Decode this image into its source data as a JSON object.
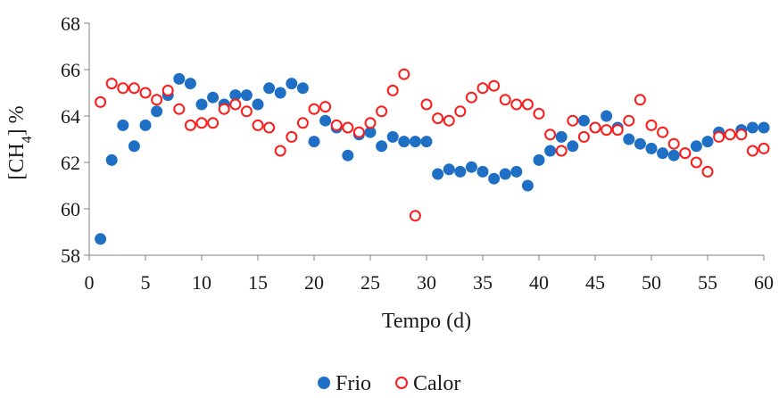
{
  "chart_data": {
    "type": "scatter",
    "title": "",
    "xlabel": "Tempo (d)",
    "ylabel": {
      "main": "[CH",
      "sub": "4",
      "end": "] %"
    },
    "xlim": [
      0,
      60
    ],
    "ylim": [
      58,
      68
    ],
    "xticks": [
      "0",
      "5",
      "10",
      "15",
      "20",
      "25",
      "30",
      "35",
      "40",
      "45",
      "50",
      "55",
      "60"
    ],
    "yticks": [
      "58",
      "60",
      "62",
      "64",
      "66",
      "68"
    ],
    "grid": false,
    "legend_position": "bottom-center",
    "series": [
      {
        "name": "Frio",
        "marker": "filled-circle",
        "color": "#1f6fc5",
        "points": [
          [
            1,
            58.7
          ],
          [
            2,
            62.1
          ],
          [
            3,
            63.6
          ],
          [
            4,
            62.7
          ],
          [
            5,
            63.6
          ],
          [
            6,
            64.2
          ],
          [
            7,
            64.9
          ],
          [
            8,
            65.6
          ],
          [
            9,
            65.4
          ],
          [
            10,
            64.5
          ],
          [
            11,
            64.8
          ],
          [
            12,
            64.5
          ],
          [
            13,
            64.9
          ],
          [
            14,
            64.9
          ],
          [
            15,
            64.5
          ],
          [
            16,
            65.2
          ],
          [
            17,
            65.0
          ],
          [
            18,
            65.4
          ],
          [
            19,
            65.2
          ],
          [
            20,
            62.9
          ],
          [
            21,
            63.8
          ],
          [
            22,
            63.5
          ],
          [
            23,
            62.3
          ],
          [
            24,
            63.2
          ],
          [
            25,
            63.3
          ],
          [
            26,
            62.7
          ],
          [
            27,
            63.1
          ],
          [
            28,
            62.9
          ],
          [
            29,
            62.9
          ],
          [
            30,
            62.9
          ],
          [
            31,
            61.5
          ],
          [
            32,
            61.7
          ],
          [
            33,
            61.6
          ],
          [
            34,
            61.8
          ],
          [
            35,
            61.6
          ],
          [
            36,
            61.3
          ],
          [
            37,
            61.5
          ],
          [
            38,
            61.6
          ],
          [
            39,
            61.0
          ],
          [
            40,
            62.1
          ],
          [
            41,
            62.5
          ],
          [
            42,
            63.1
          ],
          [
            43,
            62.7
          ],
          [
            44,
            63.8
          ],
          [
            45,
            63.5
          ],
          [
            46,
            64.0
          ],
          [
            47,
            63.5
          ],
          [
            48,
            63.0
          ],
          [
            49,
            62.8
          ],
          [
            50,
            62.6
          ],
          [
            51,
            62.4
          ],
          [
            52,
            62.3
          ],
          [
            53,
            62.4
          ],
          [
            54,
            62.7
          ],
          [
            55,
            62.9
          ],
          [
            56,
            63.3
          ],
          [
            57,
            63.2
          ],
          [
            58,
            63.4
          ],
          [
            59,
            63.5
          ],
          [
            60,
            63.5
          ]
        ]
      },
      {
        "name": "Calor",
        "marker": "open-circle",
        "color": "#ff1a1a",
        "points": [
          [
            1,
            64.6
          ],
          [
            2,
            65.4
          ],
          [
            3,
            65.2
          ],
          [
            4,
            65.2
          ],
          [
            5,
            65.0
          ],
          [
            6,
            64.7
          ],
          [
            7,
            65.1
          ],
          [
            8,
            64.3
          ],
          [
            9,
            63.6
          ],
          [
            10,
            63.7
          ],
          [
            11,
            63.7
          ],
          [
            12,
            64.3
          ],
          [
            13,
            64.5
          ],
          [
            14,
            64.2
          ],
          [
            15,
            63.6
          ],
          [
            16,
            63.5
          ],
          [
            17,
            62.5
          ],
          [
            18,
            63.1
          ],
          [
            19,
            63.7
          ],
          [
            20,
            64.3
          ],
          [
            21,
            64.4
          ],
          [
            22,
            63.6
          ],
          [
            23,
            63.5
          ],
          [
            24,
            63.3
          ],
          [
            25,
            63.7
          ],
          [
            26,
            64.2
          ],
          [
            27,
            65.1
          ],
          [
            28,
            65.8
          ],
          [
            29,
            59.7
          ],
          [
            30,
            64.5
          ],
          [
            31,
            63.9
          ],
          [
            32,
            63.8
          ],
          [
            33,
            64.2
          ],
          [
            34,
            64.8
          ],
          [
            35,
            65.2
          ],
          [
            36,
            65.3
          ],
          [
            37,
            64.7
          ],
          [
            38,
            64.5
          ],
          [
            39,
            64.5
          ],
          [
            40,
            64.1
          ],
          [
            41,
            63.2
          ],
          [
            42,
            62.5
          ],
          [
            43,
            63.8
          ],
          [
            44,
            63.1
          ],
          [
            45,
            63.5
          ],
          [
            46,
            63.4
          ],
          [
            47,
            63.4
          ],
          [
            48,
            63.8
          ],
          [
            49,
            64.7
          ],
          [
            50,
            63.6
          ],
          [
            51,
            63.3
          ],
          [
            52,
            62.8
          ],
          [
            53,
            62.4
          ],
          [
            54,
            62.0
          ],
          [
            55,
            61.6
          ],
          [
            56,
            63.1
          ],
          [
            57,
            63.2
          ],
          [
            58,
            63.2
          ],
          [
            59,
            62.5
          ],
          [
            60,
            62.6
          ]
        ]
      }
    ]
  }
}
